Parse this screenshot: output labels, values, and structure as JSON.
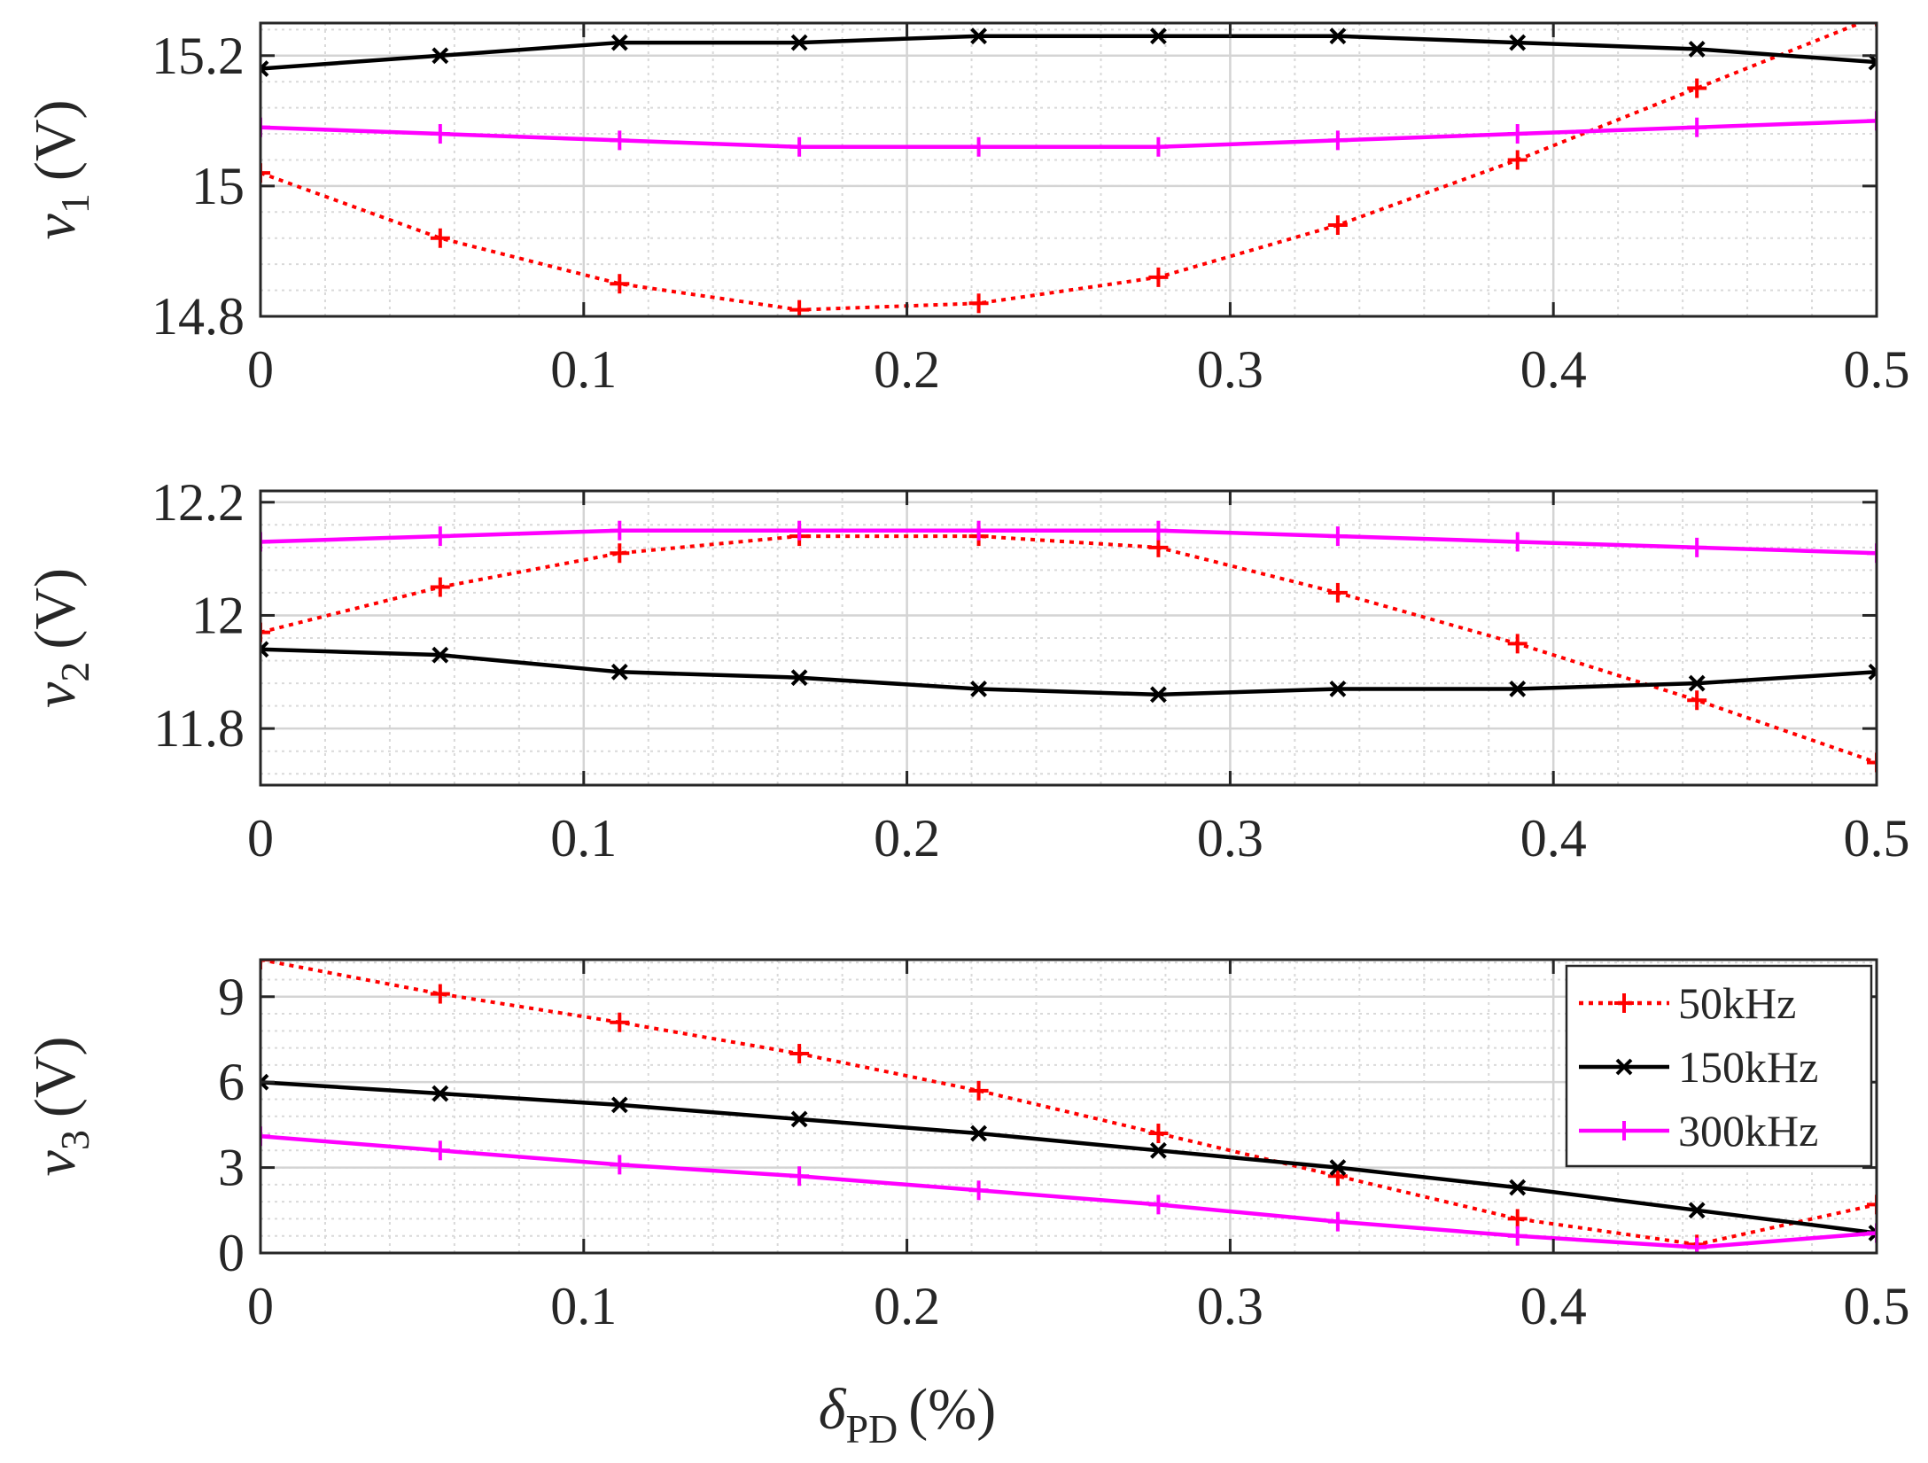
{
  "figure": {
    "xlabel": "δ",
    "xlabel_sub": "PD",
    "xlabel_unit": "(%)"
  },
  "legend": {
    "entries": [
      "50kHz",
      "150kHz",
      "300kHz"
    ]
  },
  "colors": {
    "50kHz": "#ff0000",
    "150kHz": "#000000",
    "300kHz": "#ff00ff",
    "axis": "#262626",
    "grid_major": "#d4d4d4",
    "grid_minor": "#d9d9d9"
  },
  "chart_data": [
    {
      "type": "line",
      "name": "v1",
      "ylabel": "v",
      "ylabel_sub": "1",
      "ylabel_unit": "(V)",
      "xlim": [
        0,
        0.5
      ],
      "ylim": [
        14.8,
        15.25
      ],
      "xticks": [
        0,
        0.1,
        0.2,
        0.3,
        0.4,
        0.5
      ],
      "xtick_labels": [
        "0",
        "0.1",
        "0.2",
        "0.3",
        "0.4",
        "0.5"
      ],
      "yticks": [
        14.8,
        15,
        15.2
      ],
      "ytick_labels": [
        "14.8",
        "15",
        "15.2"
      ],
      "grid": true,
      "x": [
        0,
        0.0556,
        0.1111,
        0.1667,
        0.2222,
        0.2778,
        0.3333,
        0.3889,
        0.4444,
        0.5
      ],
      "series": [
        {
          "name": "50kHz",
          "style": "dotted",
          "marker": "+",
          "values": [
            15.02,
            14.92,
            14.85,
            14.81,
            14.82,
            14.86,
            14.94,
            15.04,
            15.15,
            15.26
          ]
        },
        {
          "name": "150kHz",
          "style": "solid",
          "marker": "x",
          "values": [
            15.18,
            15.2,
            15.22,
            15.22,
            15.23,
            15.23,
            15.23,
            15.22,
            15.21,
            15.19
          ]
        },
        {
          "name": "300kHz",
          "style": "solid",
          "marker": "+",
          "values": [
            15.09,
            15.08,
            15.07,
            15.06,
            15.06,
            15.06,
            15.07,
            15.08,
            15.09,
            15.1
          ]
        }
      ]
    },
    {
      "type": "line",
      "name": "v2",
      "ylabel": "v",
      "ylabel_sub": "2",
      "ylabel_unit": "(V)",
      "xlim": [
        0,
        0.5
      ],
      "ylim": [
        11.7,
        12.22
      ],
      "xticks": [
        0,
        0.1,
        0.2,
        0.3,
        0.4,
        0.5
      ],
      "xtick_labels": [
        "0",
        "0.1",
        "0.2",
        "0.3",
        "0.4",
        "0.5"
      ],
      "yticks": [
        11.8,
        12,
        12.2
      ],
      "ytick_labels": [
        "11.8",
        "12",
        "12.2"
      ],
      "grid": true,
      "x": [
        0,
        0.0556,
        0.1111,
        0.1667,
        0.2222,
        0.2778,
        0.3333,
        0.3889,
        0.4444,
        0.5
      ],
      "series": [
        {
          "name": "50kHz",
          "style": "dotted",
          "marker": "+",
          "values": [
            11.97,
            12.05,
            12.11,
            12.14,
            12.14,
            12.12,
            12.04,
            11.95,
            11.85,
            11.74
          ]
        },
        {
          "name": "150kHz",
          "style": "solid",
          "marker": "x",
          "values": [
            11.94,
            11.93,
            11.9,
            11.89,
            11.87,
            11.86,
            11.87,
            11.87,
            11.88,
            11.9
          ]
        },
        {
          "name": "300kHz",
          "style": "solid",
          "marker": "+",
          "values": [
            12.13,
            12.14,
            12.15,
            12.15,
            12.15,
            12.15,
            12.14,
            12.13,
            12.12,
            12.11
          ]
        }
      ]
    },
    {
      "type": "line",
      "name": "v3",
      "ylabel": "v",
      "ylabel_sub": "3",
      "ylabel_unit": "(V)",
      "xlim": [
        0,
        0.5
      ],
      "ylim": [
        0,
        10.3
      ],
      "xticks": [
        0,
        0.1,
        0.2,
        0.3,
        0.4,
        0.5
      ],
      "xtick_labels": [
        "0",
        "0.1",
        "0.2",
        "0.3",
        "0.4",
        "0.5"
      ],
      "yticks": [
        0,
        3,
        6,
        9
      ],
      "ytick_labels": [
        "0",
        "3",
        "6",
        "9"
      ],
      "grid": true,
      "legend": "top-right",
      "x": [
        0,
        0.0556,
        0.1111,
        0.1667,
        0.2222,
        0.2778,
        0.3333,
        0.3889,
        0.4444,
        0.5
      ],
      "series": [
        {
          "name": "50kHz",
          "style": "dotted",
          "marker": "+",
          "values": [
            10.3,
            9.1,
            8.1,
            7.0,
            5.7,
            4.2,
            2.7,
            1.2,
            0.3,
            1.7
          ]
        },
        {
          "name": "150kHz",
          "style": "solid",
          "marker": "x",
          "values": [
            6.0,
            5.6,
            5.2,
            4.7,
            4.2,
            3.6,
            3.0,
            2.3,
            1.5,
            0.7
          ]
        },
        {
          "name": "300kHz",
          "style": "solid",
          "marker": "+",
          "values": [
            4.1,
            3.6,
            3.1,
            2.7,
            2.2,
            1.7,
            1.1,
            0.6,
            0.2,
            0.7
          ]
        }
      ]
    }
  ]
}
